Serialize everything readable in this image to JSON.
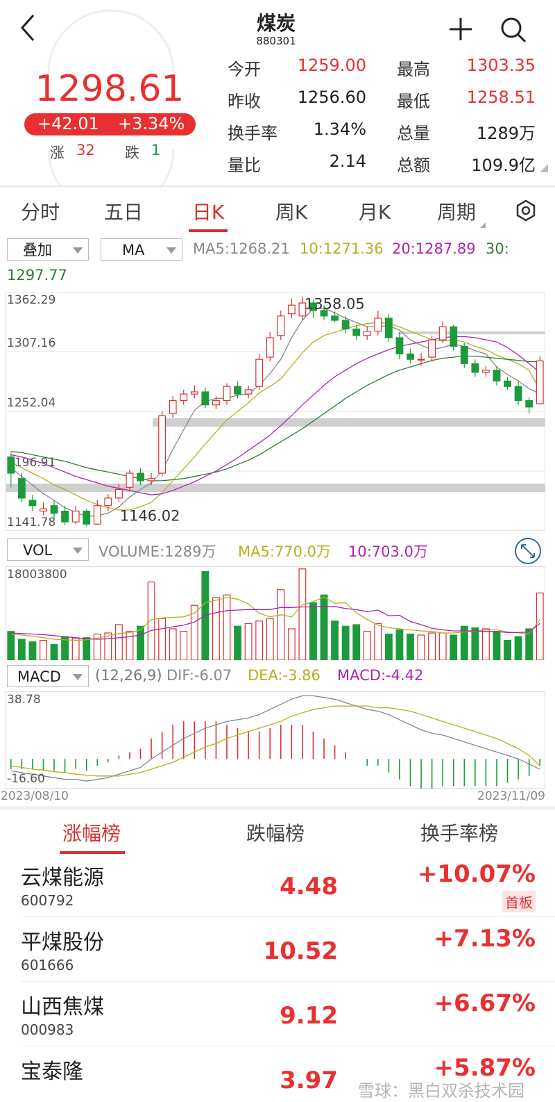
{
  "header": {
    "title": "煤炭",
    "code": "880301"
  },
  "quote": {
    "price": "1298.61",
    "change": "+42.01",
    "change_pct": "+3.34%",
    "up_label": "涨",
    "up_count": "32",
    "down_label": "跌",
    "down_count": "1"
  },
  "stats": [
    {
      "label": "今开",
      "value": "1259.00",
      "color": "#e93030"
    },
    {
      "label": "最高",
      "value": "1303.35",
      "color": "#e93030"
    },
    {
      "label": "昨收",
      "value": "1256.60",
      "color": "#222222"
    },
    {
      "label": "最低",
      "value": "1258.51",
      "color": "#e93030"
    },
    {
      "label": "换手率",
      "value": "1.34%",
      "color": "#222222"
    },
    {
      "label": "总量",
      "value": "1289万",
      "color": "#222222"
    },
    {
      "label": "量比",
      "value": "2.14",
      "color": "#222222"
    },
    {
      "label": "总额",
      "value": "109.9亿",
      "color": "#222222"
    }
  ],
  "tabs": [
    "分时",
    "五日",
    "日K",
    "周K",
    "月K",
    "周期"
  ],
  "active_tab": 2,
  "indicator_bar": {
    "overlay": "叠加",
    "ma": "MA",
    "legend": [
      {
        "text": "MA5:1268.21",
        "color": "#888888"
      },
      {
        "text": "10:1271.36",
        "color": "#b5b01c"
      },
      {
        "text": "20:1287.89",
        "color": "#b024b0"
      },
      {
        "text": "30:",
        "color": "#2e7d32"
      },
      {
        "text": "1297.77",
        "color": "#2e7d32"
      }
    ]
  },
  "kline": {
    "ylim": [
      1141.78,
      1362.29
    ],
    "yticks": [
      1362.29,
      1307.16,
      1252.04,
      1196.91,
      1141.78
    ],
    "up_color": "#d8312f",
    "down_color": "#1d9b3c",
    "high_label": "1358.05",
    "high_index": 27,
    "low_label": "1146.02",
    "low_index": 7,
    "open": [
      1210,
      1190,
      1170,
      1160,
      1165,
      1160,
      1150,
      1160,
      1148,
      1165,
      1172,
      1182,
      1195,
      1188,
      1195,
      1250,
      1262,
      1268,
      1270,
      1258,
      1262,
      1275,
      1268,
      1275,
      1302,
      1322,
      1342,
      1340,
      1352,
      1345,
      1340,
      1336,
      1328,
      1322,
      1326,
      1338,
      1320,
      1305,
      1300,
      1302,
      1318,
      1330,
      1312,
      1296,
      1288,
      1290,
      1280,
      1275,
      1262,
      1259.0
    ],
    "close": [
      1195,
      1172,
      1165,
      1162,
      1158,
      1150,
      1160,
      1148,
      1165,
      1172,
      1180,
      1195,
      1188,
      1190,
      1248,
      1262,
      1268,
      1270,
      1258,
      1262,
      1275,
      1268,
      1272,
      1300,
      1320,
      1340,
      1350,
      1352,
      1345,
      1340,
      1336,
      1328,
      1322,
      1326,
      1338,
      1320,
      1305,
      1300,
      1300,
      1318,
      1330,
      1312,
      1296,
      1288,
      1290,
      1280,
      1275,
      1262,
      1256,
      1298.61
    ],
    "high": [
      1214,
      1195,
      1175,
      1168,
      1170,
      1165,
      1165,
      1162,
      1170,
      1176,
      1185,
      1198,
      1200,
      1195,
      1252,
      1266,
      1272,
      1276,
      1274,
      1266,
      1278,
      1280,
      1276,
      1305,
      1325,
      1345,
      1356,
      1358.05,
      1355,
      1350,
      1344,
      1340,
      1332,
      1330,
      1345,
      1342,
      1325,
      1310,
      1306,
      1322,
      1335,
      1332,
      1315,
      1300,
      1294,
      1294,
      1284,
      1280,
      1265,
      1303.35
    ],
    "low": [
      1182,
      1168,
      1160,
      1156,
      1152,
      1147,
      1148,
      1146.02,
      1148,
      1160,
      1168,
      1178,
      1184,
      1184,
      1192,
      1246,
      1258,
      1264,
      1255,
      1254,
      1258,
      1264,
      1264,
      1272,
      1298,
      1318,
      1338,
      1336,
      1338,
      1336,
      1334,
      1324,
      1318,
      1318,
      1322,
      1316,
      1300,
      1296,
      1294,
      1298,
      1315,
      1308,
      1292,
      1284,
      1284,
      1276,
      1272,
      1258,
      1250,
      1258.51
    ],
    "ma": [
      {
        "color": "#888888",
        "values": [
          1200,
          1192,
          1184,
          1176,
          1170,
          1163,
          1159,
          1155,
          1156,
          1158,
          1164,
          1173,
          1180,
          1186,
          1197,
          1217,
          1235,
          1253,
          1261,
          1264,
          1264,
          1267,
          1268,
          1276,
          1287,
          1300,
          1320,
          1336,
          1347,
          1347,
          1343,
          1338,
          1334,
          1330,
          1330,
          1331,
          1327,
          1318,
          1313,
          1309,
          1311,
          1314,
          1312,
          1308,
          1305,
          1293,
          1286,
          1280,
          1273,
          1268.21
        ]
      },
      {
        "color": "#b5b01c",
        "values": [
          1205,
          1200,
          1195,
          1190,
          1184,
          1180,
          1175,
          1170,
          1166,
          1163,
          1161,
          1161,
          1164,
          1168,
          1177,
          1188,
          1199,
          1210,
          1222,
          1233,
          1244,
          1252,
          1260,
          1269,
          1275,
          1282,
          1294,
          1306,
          1316,
          1322,
          1325,
          1328,
          1331,
          1333,
          1334,
          1333,
          1330,
          1326,
          1322,
          1318,
          1317,
          1318,
          1316,
          1312,
          1309,
          1304,
          1300,
          1296,
          1290,
          1271.36
        ]
      },
      {
        "color": "#b024b0",
        "values": [
          1212,
          1210,
          1207,
          1204,
          1200,
          1196,
          1192,
          1189,
          1186,
          1183,
          1181,
          1179,
          1177,
          1175,
          1176,
          1179,
          1183,
          1187,
          1192,
          1197,
          1203,
          1209,
          1216,
          1223,
          1230,
          1239,
          1248,
          1258,
          1267,
          1276,
          1284,
          1290,
          1296,
          1301,
          1305,
          1309,
          1312,
          1314,
          1316,
          1318,
          1320,
          1321,
          1321,
          1320,
          1318,
          1316,
          1311,
          1304,
          1296,
          1287.89
        ]
      },
      {
        "color": "#2e7d32",
        "values": [
          1215,
          1214,
          1212,
          1210,
          1208,
          1206,
          1203,
          1200,
          1198,
          1196,
          1194,
          1192,
          1190,
          1188,
          1188,
          1189,
          1190,
          1192,
          1194,
          1196,
          1199,
          1203,
          1207,
          1212,
          1218,
          1224,
          1230,
          1236,
          1243,
          1250,
          1257,
          1264,
          1270,
          1276,
          1281,
          1286,
          1290,
          1293,
          1296,
          1299,
          1301,
          1302,
          1303,
          1303,
          1302,
          1301,
          1300,
          1299,
          1298,
          1297.77
        ]
      }
    ]
  },
  "volume_bar": {
    "selector": "VOL",
    "legend": [
      {
        "text": "VOLUME:1289万",
        "color": "#888888"
      },
      {
        "text": "MA5:770.0万",
        "color": "#b5b01c"
      },
      {
        "text": "10:703.0万",
        "color": "#b024b0"
      }
    ]
  },
  "volume": {
    "ylim": [
      0,
      18003800
    ],
    "yticks": [
      18003800
    ],
    "values": [
      5500000,
      4000000,
      3500000,
      3800000,
      3000000,
      4500000,
      4200000,
      4300000,
      5000000,
      5200000,
      6800000,
      5500000,
      6500000,
      15000000,
      8000000,
      6000000,
      5500000,
      10500000,
      17000000,
      12000000,
      12500000,
      6500000,
      7000000,
      7500000,
      8000000,
      13500000,
      6000000,
      17500000,
      11000000,
      12500000,
      7500000,
      6500000,
      6800000,
      5500000,
      7000000,
      5000000,
      5800000,
      5000000,
      4800000,
      5200000,
      5200000,
      4800000,
      6500000,
      6200000,
      6000000,
      5500000,
      3800000,
      4500000,
      6000000,
      12890000
    ],
    "ma": [
      {
        "color": "#b5b01c",
        "values": [
          5000000,
          4800000,
          4600000,
          4300000,
          4000000,
          3900000,
          3800000,
          3900000,
          4200000,
          4600000,
          5100000,
          5300000,
          5800000,
          7800000,
          8100000,
          8200000,
          8300000,
          9000000,
          11000000,
          11500000,
          12000000,
          11700000,
          10800000,
          9000000,
          8300000,
          8700000,
          8300000,
          10600000,
          11200000,
          12100000,
          10900000,
          11000000,
          9100000,
          7800000,
          6700000,
          6200000,
          6000000,
          5800000,
          5600000,
          5500000,
          5200000,
          5200000,
          5400000,
          5500000,
          5800000,
          5800000,
          5400000,
          5200000,
          5100000,
          7700000
        ]
      },
      {
        "color": "#b024b0",
        "values": [
          5200000,
          5100000,
          5000000,
          4900000,
          4700000,
          4500000,
          4300000,
          4100000,
          4000000,
          4100000,
          4300000,
          4500000,
          4800000,
          5700000,
          6000000,
          6400000,
          6700000,
          7300000,
          8600000,
          9100000,
          9500000,
          9600000,
          9700000,
          9700000,
          9700000,
          10100000,
          10100000,
          10200000,
          10200000,
          10300000,
          10300000,
          9900000,
          9700000,
          9300000,
          9600000,
          8500000,
          8600000,
          7400000,
          6800000,
          6100000,
          5800000,
          5600000,
          5600000,
          5600000,
          5500000,
          5500000,
          5300000,
          5300000,
          5400000,
          7030000
        ]
      }
    ]
  },
  "macd_bar": {
    "selector": "MACD",
    "params": "(12,26,9)",
    "legend": [
      {
        "text": "DIF:-6.07",
        "color": "#888888"
      },
      {
        "text": "DEA:-3.86",
        "color": "#b5b01c"
      },
      {
        "text": "MACD:-4.42",
        "color": "#b024b0"
      }
    ]
  },
  "macd": {
    "ylim": [
      -16.6,
      38.78
    ],
    "yticks": [
      38.78,
      {
        "value": -16.6,
        "label": "-16.60"
      }
    ],
    "dif": [
      -7,
      -8,
      -9,
      -10,
      -11,
      -12,
      -12,
      -13,
      -12,
      -11,
      -9,
      -7,
      -5,
      0,
      4,
      8,
      12,
      15,
      18,
      20,
      22,
      23,
      24,
      26,
      29,
      32,
      35,
      37,
      37,
      36,
      35,
      33,
      31,
      29,
      28,
      26,
      23,
      20,
      17,
      15,
      14,
      12,
      10,
      8,
      6,
      4,
      2,
      0,
      -3,
      -6.07
    ],
    "dea": [
      -4,
      -5,
      -6,
      -6.5,
      -7.5,
      -8,
      -9,
      -9.5,
      -10,
      -10,
      -10,
      -9,
      -8,
      -6,
      -4,
      -2,
      1,
      4,
      7,
      9,
      12,
      14,
      16,
      18,
      20,
      22,
      25,
      27,
      29,
      30,
      31,
      31,
      31,
      31,
      30,
      30,
      29,
      28,
      26,
      24,
      22,
      20,
      18,
      16,
      14,
      12,
      9,
      6,
      2,
      -3.86
    ],
    "hist": [
      -6,
      -6,
      -6,
      -7,
      -7,
      -8,
      -6,
      -7,
      -4,
      -2,
      2,
      4,
      6,
      12,
      16,
      20,
      22,
      22,
      22,
      22,
      20,
      18,
      16,
      16,
      18,
      20,
      20,
      20,
      16,
      12,
      8,
      4,
      0,
      -4,
      -4,
      -8,
      -12,
      -16,
      -18,
      -18,
      -16,
      -16,
      -16,
      -16,
      -16,
      -16,
      -14,
      -12,
      -10,
      -4.42
    ]
  },
  "dates": [
    "2023/08/10",
    "2023/11/09"
  ],
  "ranking": {
    "tabs": [
      "涨幅榜",
      "跌幅榜",
      "换手率榜"
    ],
    "active_tab": 0,
    "rows": [
      {
        "name": "云煤能源",
        "code": "600792",
        "price": "4.48",
        "change": "+10.07%",
        "badge": "首板"
      },
      {
        "name": "平煤股份",
        "code": "601666",
        "price": "10.52",
        "change": "+7.13%"
      },
      {
        "name": "山西焦煤",
        "code": "000983",
        "price": "9.12",
        "change": "+6.67%"
      },
      {
        "name": "宝泰隆",
        "price": "3.97",
        "change": "+5.87%"
      }
    ]
  },
  "watermark": "雪球：黑白双杀技术园"
}
